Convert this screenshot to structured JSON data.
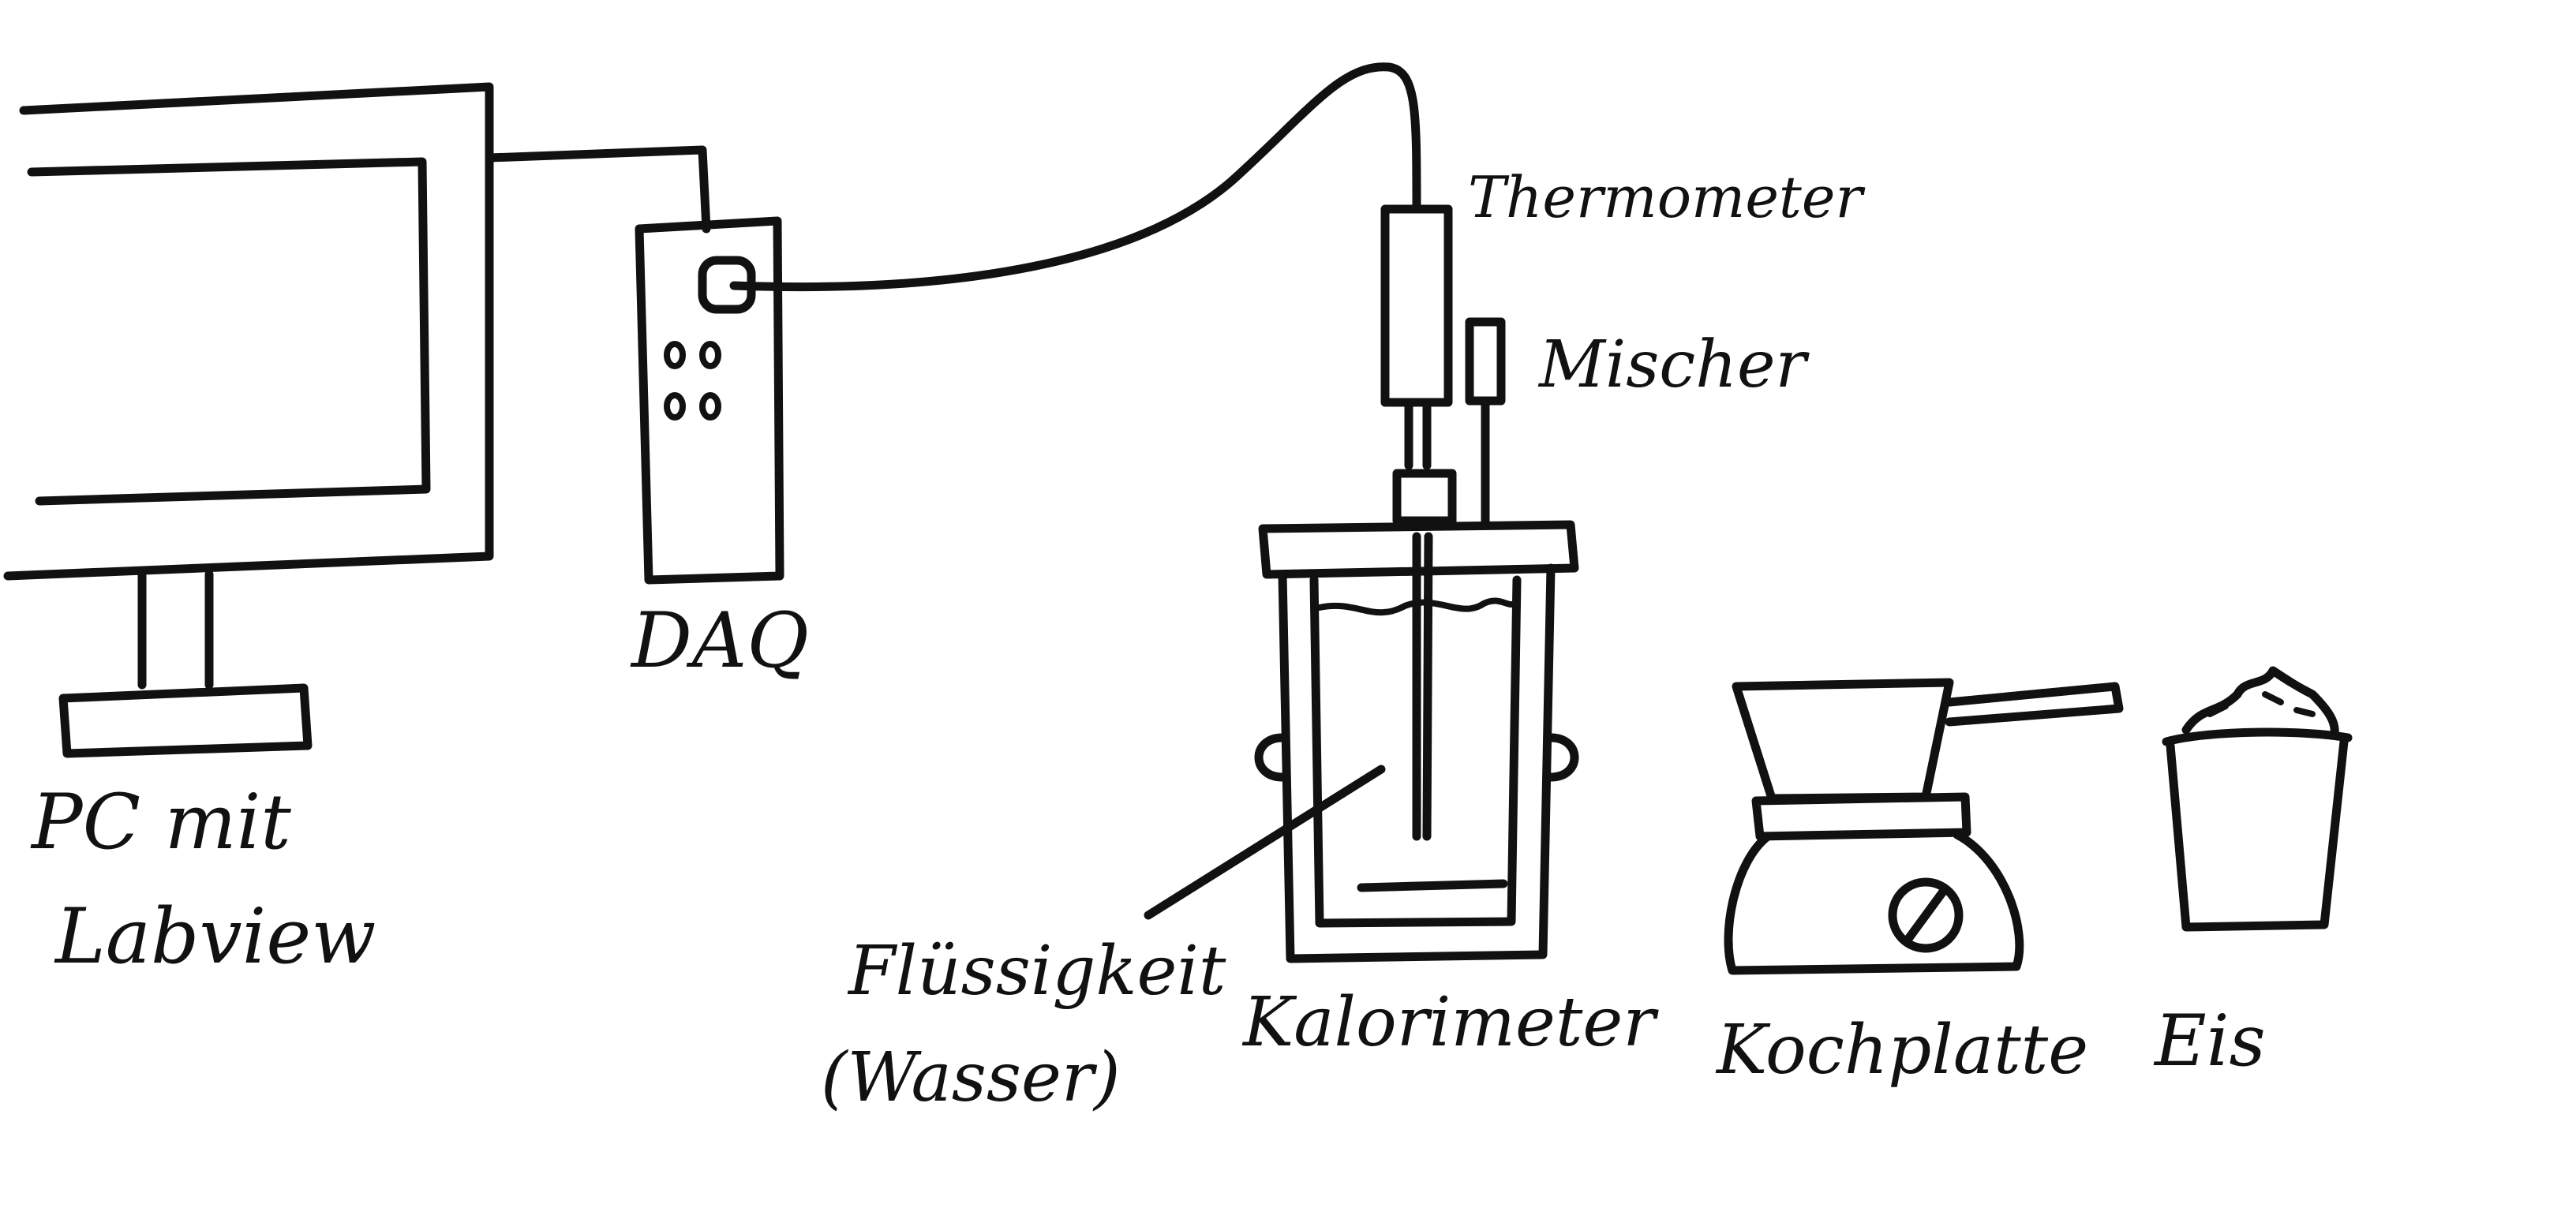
{
  "labels": {
    "pc_line1": "PC mit",
    "pc_line2": "Labview",
    "daq": "DAQ",
    "thermometer": "Thermometer",
    "mixer": "Mischer",
    "liquid_line1": "Flüssigkeit",
    "liquid_line2": "(Wasser)",
    "calorimeter": "Kalorimeter",
    "hotplate": "Kochplatte",
    "ice": "Eis"
  },
  "colors": {
    "ink": "#111111",
    "background": "#ffffff"
  }
}
